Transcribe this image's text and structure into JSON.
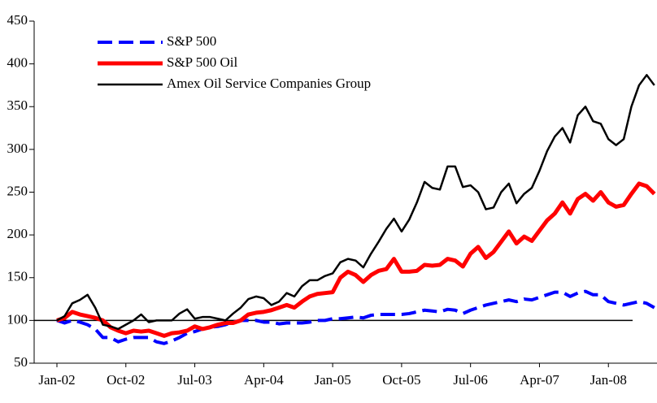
{
  "chart_data": {
    "type": "line",
    "categories": [
      "Jan-02",
      null,
      null,
      null,
      null,
      null,
      null,
      null,
      null,
      "Oct-02",
      null,
      null,
      null,
      null,
      null,
      null,
      null,
      null,
      "Jul-03",
      null,
      null,
      null,
      null,
      null,
      null,
      null,
      null,
      "Apr-04",
      null,
      null,
      null,
      null,
      null,
      null,
      null,
      null,
      "Jan-05",
      null,
      null,
      null,
      null,
      null,
      null,
      null,
      null,
      "Oct-05",
      null,
      null,
      null,
      null,
      null,
      null,
      null,
      null,
      "Jul-06",
      null,
      null,
      null,
      null,
      null,
      null,
      null,
      null,
      "Apr-07",
      null,
      null,
      null,
      null,
      null,
      null,
      null,
      null,
      "Jan-08",
      null,
      null,
      null,
      null,
      null,
      null
    ],
    "series": [
      {
        "name": "S&P 500",
        "color": "#0000ff",
        "line_style": "dashed",
        "values": [
          100,
          97,
          100,
          98,
          95,
          90,
          80,
          80,
          75,
          78,
          80,
          80,
          80,
          75,
          73,
          76,
          80,
          85,
          87,
          90,
          92,
          93,
          95,
          98,
          100,
          100,
          100,
          98,
          98,
          96,
          97,
          97,
          97,
          98,
          100,
          100,
          102,
          102,
          103,
          104,
          103,
          106,
          107,
          107,
          107,
          107,
          108,
          110,
          112,
          111,
          110,
          113,
          112,
          108,
          112,
          115,
          118,
          120,
          122,
          124,
          122,
          125,
          124,
          127,
          130,
          133,
          133,
          128,
          132,
          134,
          130,
          130,
          122,
          120,
          118,
          120,
          122,
          120,
          115
        ]
      },
      {
        "name": "S&P 500 Oil",
        "color": "#ff0000",
        "line_style": "solid",
        "values": [
          100,
          103,
          110,
          107,
          105,
          103,
          100,
          92,
          88,
          85,
          88,
          87,
          88,
          85,
          82,
          85,
          86,
          88,
          93,
          90,
          92,
          95,
          97,
          97,
          100,
          107,
          109,
          110,
          112,
          115,
          118,
          115,
          122,
          128,
          131,
          132,
          133,
          150,
          157,
          153,
          145,
          153,
          158,
          160,
          172,
          157,
          157,
          158,
          165,
          164,
          165,
          172,
          170,
          163,
          178,
          186,
          173,
          180,
          192,
          204,
          190,
          198,
          193,
          205,
          217,
          225,
          238,
          225,
          242,
          248,
          240,
          250,
          238,
          233,
          235,
          248,
          260,
          257,
          248
        ]
      },
      {
        "name": "Amex Oil Service Companies Group",
        "color": "#000000",
        "line_style": "solid",
        "values": [
          100,
          105,
          120,
          124,
          130,
          115,
          95,
          93,
          90,
          95,
          100,
          107,
          98,
          100,
          100,
          100,
          108,
          113,
          102,
          104,
          104,
          102,
          100,
          108,
          115,
          125,
          128,
          126,
          118,
          122,
          132,
          128,
          140,
          147,
          147,
          152,
          155,
          168,
          172,
          170,
          162,
          178,
          192,
          207,
          219,
          204,
          218,
          238,
          262,
          255,
          253,
          280,
          280,
          256,
          258,
          250,
          230,
          232,
          250,
          260,
          237,
          248,
          255,
          275,
          298,
          315,
          325,
          308,
          340,
          350,
          333,
          330,
          312,
          305,
          312,
          350,
          375,
          387,
          375
        ]
      }
    ],
    "reference_line": 100,
    "ylim": [
      50,
      450
    ],
    "yticks": [
      50,
      100,
      150,
      200,
      250,
      300,
      350,
      400,
      450
    ],
    "legend": "upper left"
  }
}
